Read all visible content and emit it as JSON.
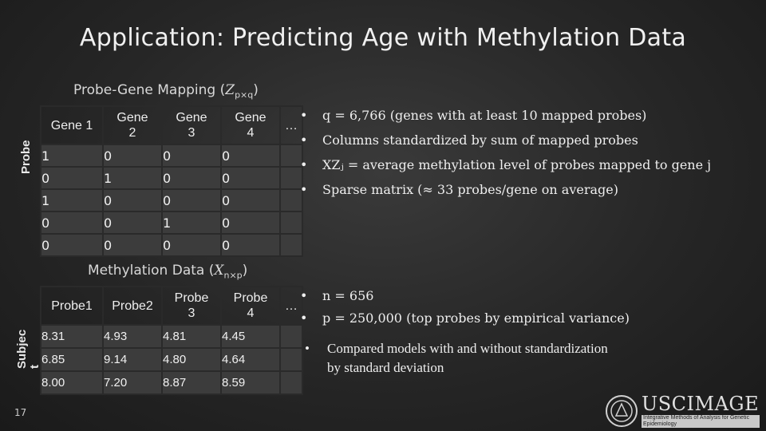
{
  "title": "Application: Predicting Age with Methylation Data",
  "mapping": {
    "caption_prefix": "Probe-Gene Mapping (",
    "caption_var": "Z",
    "caption_sub": "p×q",
    "caption_suffix": ")",
    "row_axis_label": "Probe",
    "headers": [
      "Gene 1",
      "Gene\n2",
      "Gene\n3",
      "Gene\n4"
    ],
    "ellipsis": "…",
    "rows": [
      [
        "1",
        "0",
        "0",
        "0"
      ],
      [
        "0",
        "1",
        "0",
        "0"
      ],
      [
        "1",
        "0",
        "0",
        "0"
      ],
      [
        "0",
        "0",
        "1",
        "0"
      ],
      [
        "0",
        "0",
        "0",
        "0"
      ]
    ]
  },
  "methylation": {
    "caption_prefix": "Methylation Data (",
    "caption_var": "X",
    "caption_sub": "n×p",
    "caption_suffix": ")",
    "row_axis_label": "Subjec\nt",
    "headers": [
      "Probe1",
      "Probe2",
      "Probe\n3",
      "Probe\n4"
    ],
    "ellipsis": "…",
    "rows": [
      [
        "8.31",
        "4.93",
        "4.81",
        "4.45"
      ],
      [
        "6.85",
        "9.14",
        "4.80",
        "4.64"
      ],
      [
        "8.00",
        "7.20",
        "8.87",
        "8.59"
      ]
    ]
  },
  "bullets_top": [
    "q = 6,766 (genes with at least 10 mapped probes)",
    "Columns standardized by sum of mapped probes",
    "XZⱼ = average methylation level of probes mapped to gene j",
    "Sparse matrix (≈ 33 probes/gene on average)"
  ],
  "bullets_mid": [
    "n = 656",
    "p = 250,000 (top probes by empirical variance)"
  ],
  "bullets_bottom": [
    "Compared models with and without standardization by standard deviation"
  ],
  "slide_number": "17",
  "logo": {
    "name": "USCIMAGE",
    "tagline": "Integrative Methods of Analysis for Genetic Epidemiology"
  }
}
